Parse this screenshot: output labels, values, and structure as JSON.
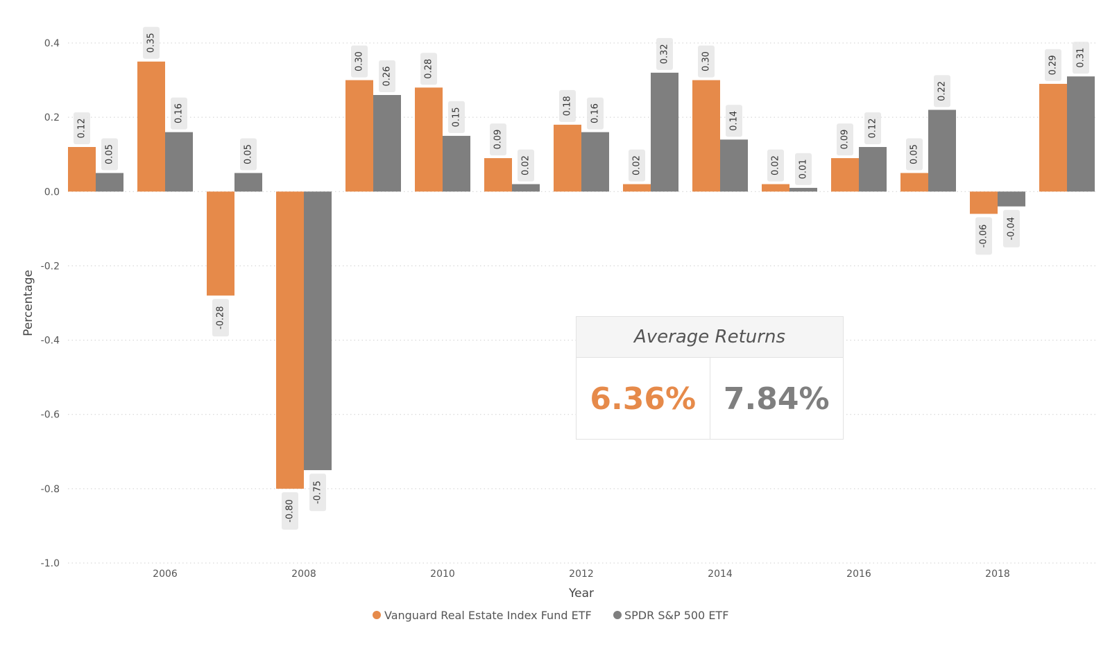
{
  "chart_data": {
    "type": "bar",
    "title": "",
    "xlabel": "Year",
    "ylabel": "Percentage",
    "ylim": [
      -1.0,
      0.4
    ],
    "yticks": [
      0.4,
      0.2,
      0.0,
      -0.2,
      -0.4,
      -0.6,
      -0.8,
      -1.0
    ],
    "ytick_labels": [
      "0.4",
      "0.2",
      "0.0",
      "-0.2",
      "-0.4",
      "-0.6",
      "-0.8",
      "-1.0"
    ],
    "categories": [
      2005,
      2006,
      2007,
      2008,
      2009,
      2010,
      2011,
      2012,
      2013,
      2014,
      2015,
      2016,
      2017,
      2018,
      2019
    ],
    "xtick_labels": [
      "2006",
      "2008",
      "2010",
      "2012",
      "2014",
      "2016",
      "2018"
    ],
    "xtick_years": [
      2006,
      2008,
      2010,
      2012,
      2014,
      2016,
      2018
    ],
    "grid": true,
    "legend_position": "bottom-center",
    "series": [
      {
        "name": "Vanguard Real Estate Index Fund ETF",
        "color": "#E68A4A",
        "values": [
          0.12,
          0.35,
          -0.28,
          -0.8,
          0.3,
          0.28,
          0.09,
          0.18,
          0.02,
          0.3,
          0.02,
          0.09,
          0.05,
          -0.06,
          0.29
        ],
        "labels": [
          "0.12",
          "0.35",
          "-0.28",
          "-0.80",
          "0.30",
          "0.28",
          "0.09",
          "0.18",
          "0.02",
          "0.30",
          "0.02",
          "0.09",
          "0.05",
          "-0.06",
          "0.29"
        ]
      },
      {
        "name": "SPDR S&P 500 ETF",
        "color": "#7F7F7F",
        "values": [
          0.05,
          0.16,
          0.05,
          -0.75,
          0.26,
          0.15,
          0.02,
          0.16,
          0.32,
          0.14,
          0.01,
          0.12,
          0.22,
          -0.04,
          0.31
        ],
        "labels": [
          "0.05",
          "0.16",
          "0.05",
          "-0.75",
          "0.26",
          "0.15",
          "0.02",
          "0.16",
          "0.32",
          "0.14",
          "0.01",
          "0.12",
          "0.22",
          "-0.04",
          "0.31"
        ]
      }
    ]
  },
  "summary_card": {
    "title": "Average Returns",
    "vanguard_value": "6.36%",
    "vanguard_color": "#E68A4A",
    "spdr_value": "7.84%",
    "spdr_color": "#7F7F7F"
  }
}
